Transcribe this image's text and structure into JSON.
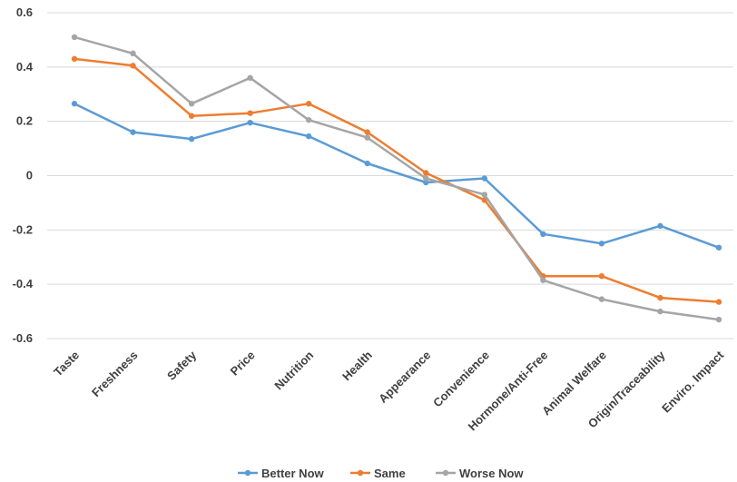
{
  "chart_data": {
    "type": "line",
    "title": "",
    "xlabel": "",
    "ylabel": "",
    "categories": [
      "Taste",
      "Freshness",
      "Safety",
      "Price",
      "Nutrition",
      "Health",
      "Appearance",
      "Convenience",
      "Hormone/Anti-Free",
      "Animal Welfare",
      "Origin/Traceability",
      "Enviro. Impact"
    ],
    "ylim": [
      -0.6,
      0.6
    ],
    "yticks": [
      0.6,
      0.4,
      0.2,
      0,
      -0.2,
      -0.4,
      -0.6
    ],
    "ytick_labels": [
      "0.6",
      "0.4",
      "0.2",
      "0",
      "-0.2",
      "-0.4",
      "-0.6"
    ],
    "grid": true,
    "legend_position": "bottom",
    "series": [
      {
        "name": "Better Now",
        "color": "#5b9bd5",
        "values": [
          0.265,
          0.16,
          0.135,
          0.195,
          0.145,
          0.045,
          -0.025,
          -0.01,
          -0.215,
          -0.25,
          -0.185,
          -0.265
        ]
      },
      {
        "name": "Same",
        "color": "#ed7d31",
        "values": [
          0.43,
          0.405,
          0.22,
          0.23,
          0.265,
          0.16,
          0.01,
          -0.09,
          -0.37,
          -0.37,
          -0.45,
          -0.465
        ]
      },
      {
        "name": "Worse Now",
        "color": "#a5a5a5",
        "values": [
          0.51,
          0.45,
          0.265,
          0.36,
          0.205,
          0.14,
          -0.01,
          -0.07,
          -0.385,
          -0.455,
          -0.5,
          -0.53
        ]
      }
    ]
  }
}
